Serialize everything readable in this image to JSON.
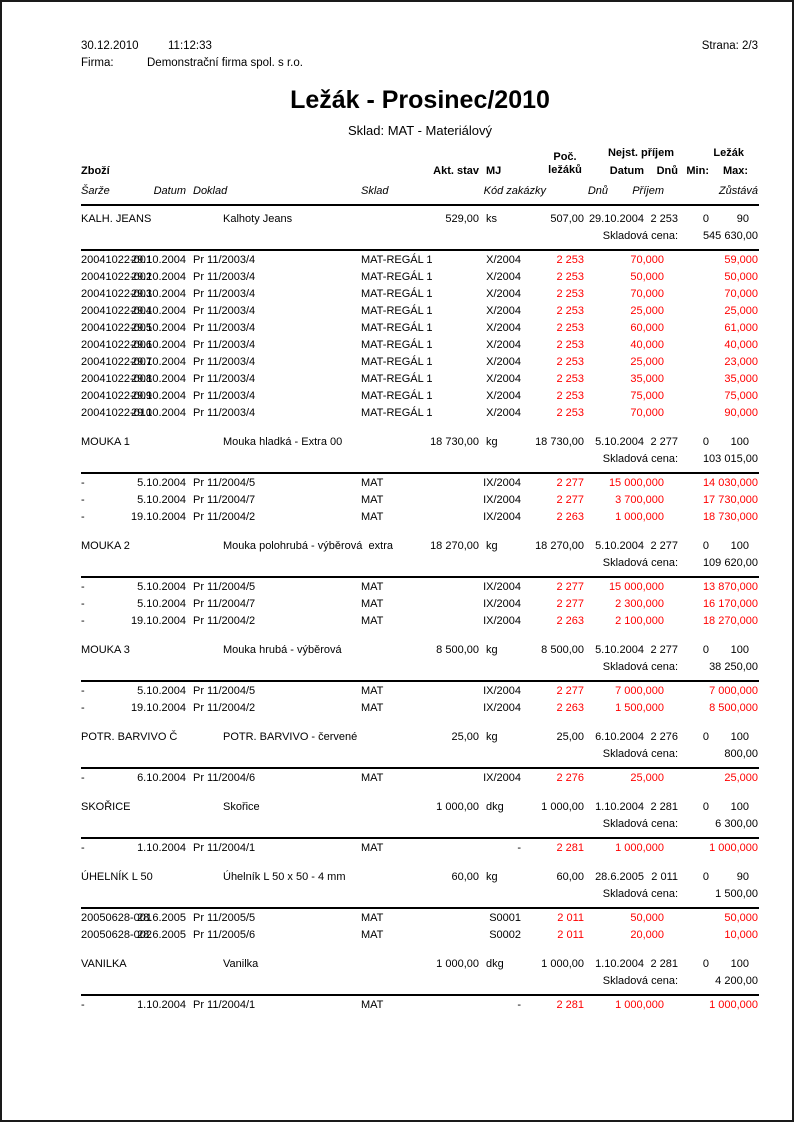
{
  "page": {
    "date": "30.12.2010",
    "time": "11:12:33",
    "firma_label": "Firma:",
    "firma_value": "Demonstrační firma spol. s r.o.",
    "strana": "Strana: 2/3",
    "title": "Ležák - Prosinec/2010",
    "subtitle": "Sklad: MAT - Materiálový"
  },
  "colors": {
    "text": "#000000",
    "red_value": "#ff0000",
    "rule": "#000000"
  },
  "table": {
    "header": {
      "zbozi": "Zboží",
      "akt_stav": "Akt. stav",
      "mj": "MJ",
      "poc_lezaku": "Poč.\nležáků",
      "nejst_prijem": "Nejst. příjem",
      "lezak": "Ležák",
      "datum_bold": "Datum",
      "dnu_bold": "Dnů",
      "min": "Min:",
      "max": "Max:",
      "sarze": "Šarže",
      "datum_italic": "Datum",
      "doklad": "Doklad",
      "sklad": "Sklad",
      "kod_zakazky": "Kód zakázky",
      "dnu_italic": "Dnů",
      "prijem": "Příjem",
      "zustava": "Zůstává"
    },
    "skladova_cena_label": "Skladová cena:",
    "groups": [
      {
        "name": "KALH. JEANS",
        "desc": "Kalhoty Jeans",
        "akt_stav": "529,00",
        "mj": "ks",
        "poc_lezaku": "507,00",
        "datum": "29.10.2004",
        "dnu": "2 253",
        "min": "0",
        "max": "90",
        "skladova_cena": "545 630,00",
        "rows": [
          [
            "20041022-001",
            "29.10.2004",
            "Pr 11/2003/4",
            "MAT-REGÁL 1",
            "X/2004",
            "2 253",
            "70,000",
            "59,000"
          ],
          [
            "20041022-002",
            "29.10.2004",
            "Pr 11/2003/4",
            "MAT-REGÁL 1",
            "X/2004",
            "2 253",
            "50,000",
            "50,000"
          ],
          [
            "20041022-003",
            "29.10.2004",
            "Pr 11/2003/4",
            "MAT-REGÁL 1",
            "X/2004",
            "2 253",
            "70,000",
            "70,000"
          ],
          [
            "20041022-004",
            "29.10.2004",
            "Pr 11/2003/4",
            "MAT-REGÁL 1",
            "X/2004",
            "2 253",
            "25,000",
            "25,000"
          ],
          [
            "20041022-005",
            "29.10.2004",
            "Pr 11/2003/4",
            "MAT-REGÁL 1",
            "X/2004",
            "2 253",
            "60,000",
            "61,000"
          ],
          [
            "20041022-006",
            "29.10.2004",
            "Pr 11/2003/4",
            "MAT-REGÁL 1",
            "X/2004",
            "2 253",
            "40,000",
            "40,000"
          ],
          [
            "20041022-007",
            "29.10.2004",
            "Pr 11/2003/4",
            "MAT-REGÁL 1",
            "X/2004",
            "2 253",
            "25,000",
            "23,000"
          ],
          [
            "20041022-008",
            "29.10.2004",
            "Pr 11/2003/4",
            "MAT-REGÁL 1",
            "X/2004",
            "2 253",
            "35,000",
            "35,000"
          ],
          [
            "20041022-009",
            "29.10.2004",
            "Pr 11/2003/4",
            "MAT-REGÁL 1",
            "X/2004",
            "2 253",
            "75,000",
            "75,000"
          ],
          [
            "20041022-010",
            "29.10.2004",
            "Pr 11/2003/4",
            "MAT-REGÁL 1",
            "X/2004",
            "2 253",
            "70,000",
            "90,000"
          ]
        ]
      },
      {
        "name": "MOUKA 1",
        "desc": "Mouka hladká - Extra 00",
        "akt_stav": "18 730,00",
        "mj": "kg",
        "poc_lezaku": "18 730,00",
        "datum": "5.10.2004",
        "dnu": "2 277",
        "min": "0",
        "max": "100",
        "skladova_cena": "103 015,00",
        "rows": [
          [
            "-",
            "5.10.2004",
            "Pr 11/2004/5",
            "MAT",
            "IX/2004",
            "2 277",
            "15 000,000",
            "14 030,000"
          ],
          [
            "-",
            "5.10.2004",
            "Pr 11/2004/7",
            "MAT",
            "IX/2004",
            "2 277",
            "3 700,000",
            "17 730,000"
          ],
          [
            "-",
            "19.10.2004",
            "Pr 11/2004/2",
            "MAT",
            "IX/2004",
            "2 263",
            "1 000,000",
            "18 730,000"
          ]
        ]
      },
      {
        "name": "MOUKA 2",
        "desc": "Mouka polohrubá - výběrová  extra",
        "akt_stav": "18 270,00",
        "mj": "kg",
        "poc_lezaku": "18 270,00",
        "datum": "5.10.2004",
        "dnu": "2 277",
        "min": "0",
        "max": "100",
        "skladova_cena": "109 620,00",
        "rows": [
          [
            "-",
            "5.10.2004",
            "Pr 11/2004/5",
            "MAT",
            "IX/2004",
            "2 277",
            "15 000,000",
            "13 870,000"
          ],
          [
            "-",
            "5.10.2004",
            "Pr 11/2004/7",
            "MAT",
            "IX/2004",
            "2 277",
            "2 300,000",
            "16 170,000"
          ],
          [
            "-",
            "19.10.2004",
            "Pr 11/2004/2",
            "MAT",
            "IX/2004",
            "2 263",
            "2 100,000",
            "18 270,000"
          ]
        ]
      },
      {
        "name": "MOUKA 3",
        "desc": "Mouka hrubá - výběrová",
        "akt_stav": "8 500,00",
        "mj": "kg",
        "poc_lezaku": "8 500,00",
        "datum": "5.10.2004",
        "dnu": "2 277",
        "min": "0",
        "max": "100",
        "skladova_cena": "38 250,00",
        "rows": [
          [
            "-",
            "5.10.2004",
            "Pr 11/2004/5",
            "MAT",
            "IX/2004",
            "2 277",
            "7 000,000",
            "7 000,000"
          ],
          [
            "-",
            "19.10.2004",
            "Pr 11/2004/2",
            "MAT",
            "IX/2004",
            "2 263",
            "1 500,000",
            "8 500,000"
          ]
        ]
      },
      {
        "name": "POTR. BARVIVO Č",
        "desc": "POTR. BARVIVO - červené",
        "akt_stav": "25,00",
        "mj": "kg",
        "poc_lezaku": "25,00",
        "datum": "6.10.2004",
        "dnu": "2 276",
        "min": "0",
        "max": "100",
        "skladova_cena": "800,00",
        "rows": [
          [
            "-",
            "6.10.2004",
            "Pr 11/2004/6",
            "MAT",
            "IX/2004",
            "2 276",
            "25,000",
            "25,000"
          ]
        ]
      },
      {
        "name": "SKOŘICE",
        "desc": "Skořice",
        "akt_stav": "1 000,00",
        "mj": "dkg",
        "poc_lezaku": "1 000,00",
        "datum": "1.10.2004",
        "dnu": "2 281",
        "min": "0",
        "max": "100",
        "skladova_cena": "6 300,00",
        "rows": [
          [
            "-",
            "1.10.2004",
            "Pr 11/2004/1",
            "MAT",
            "-",
            "2 281",
            "1 000,000",
            "1 000,000"
          ]
        ]
      },
      {
        "name": "ÚHELNÍK L 50",
        "desc": "Úhelník L 50 x 50 - 4 mm",
        "akt_stav": "60,00",
        "mj": "kg",
        "poc_lezaku": "60,00",
        "datum": "28.6.2005",
        "dnu": "2 011",
        "min": "0",
        "max": "90",
        "skladova_cena": "1 500,00",
        "rows": [
          [
            "20050628-001",
            "28.6.2005",
            "Pr 11/2005/5",
            "MAT",
            "S0001",
            "2 011",
            "50,000",
            "50,000"
          ],
          [
            "20050628-002",
            "28.6.2005",
            "Pr 11/2005/6",
            "MAT",
            "S0002",
            "2 011",
            "20,000",
            "10,000"
          ]
        ]
      },
      {
        "name": "VANILKA",
        "desc": "Vanilka",
        "akt_stav": "1 000,00",
        "mj": "dkg",
        "poc_lezaku": "1 000,00",
        "datum": "1.10.2004",
        "dnu": "2 281",
        "min": "0",
        "max": "100",
        "skladova_cena": "4 200,00",
        "rows": [
          [
            "-",
            "1.10.2004",
            "Pr 11/2004/1",
            "MAT",
            "-",
            "2 281",
            "1 000,000",
            "1 000,000"
          ]
        ]
      }
    ]
  }
}
